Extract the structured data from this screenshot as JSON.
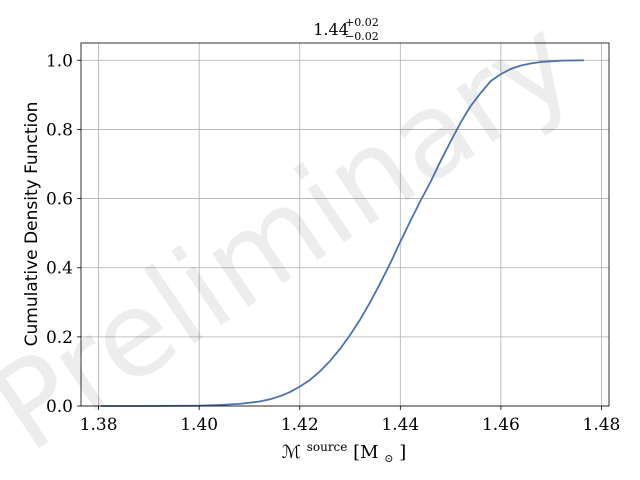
{
  "chart_data": {
    "type": "line",
    "title": {
      "main": "1.44",
      "upper": "+0.02",
      "lower": "−0.02"
    },
    "xlabel": {
      "symbol": "ℳ",
      "superscript": "source",
      "units": "[M",
      "unit_subscript": "⊙",
      "close": "]"
    },
    "ylabel": "Cumulative Density Function",
    "watermark": "Preliminary",
    "xlim": [
      1.3765,
      1.4815
    ],
    "ylim": [
      0.0,
      1.05
    ],
    "xticks": [
      1.38,
      1.4,
      1.42,
      1.44,
      1.46,
      1.48
    ],
    "xtick_labels": [
      "1.38",
      "1.40",
      "1.42",
      "1.44",
      "1.46",
      "1.48"
    ],
    "yticks": [
      0.0,
      0.2,
      0.4,
      0.6,
      0.8,
      1.0
    ],
    "ytick_labels": [
      "0.0",
      "0.2",
      "0.4",
      "0.6",
      "0.8",
      "1.0"
    ],
    "grid": true,
    "line_color": "#4c72b0",
    "series": [
      {
        "x": [
          1.3805,
          1.39,
          1.4,
          1.404,
          1.408,
          1.412,
          1.414,
          1.416,
          1.418,
          1.42,
          1.422,
          1.424,
          1.426,
          1.428,
          1.43,
          1.432,
          1.434,
          1.436,
          1.438,
          1.44,
          1.442,
          1.444,
          1.446,
          1.448,
          1.45,
          1.452,
          1.454,
          1.456,
          1.458,
          1.46,
          1.462,
          1.464,
          1.466,
          1.468,
          1.47,
          1.472,
          1.4765
        ],
        "y": [
          0.0,
          0.0,
          0.001,
          0.003,
          0.006,
          0.013,
          0.019,
          0.028,
          0.04,
          0.056,
          0.075,
          0.1,
          0.13,
          0.165,
          0.205,
          0.25,
          0.3,
          0.355,
          0.413,
          0.475,
          0.535,
          0.593,
          0.648,
          0.708,
          0.765,
          0.82,
          0.868,
          0.906,
          0.94,
          0.96,
          0.975,
          0.985,
          0.991,
          0.995,
          0.997,
          0.999,
          1.0
        ]
      }
    ]
  }
}
